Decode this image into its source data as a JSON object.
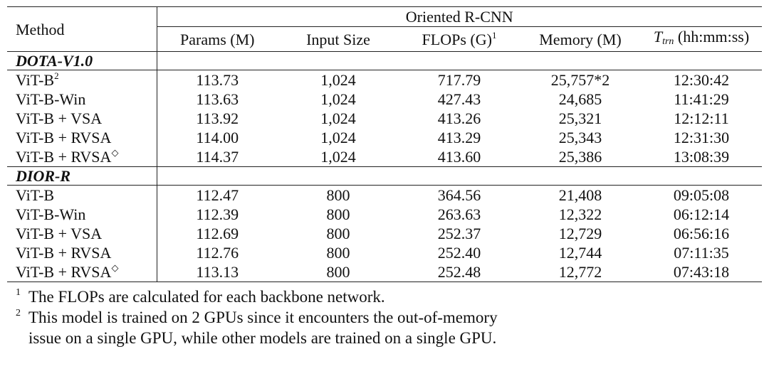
{
  "table": {
    "method_header": "Method",
    "group_header": "Oriented R-CNN",
    "columns": [
      "Params (M)",
      "Input Size",
      "FLOPs (G)",
      "Memory (M)"
    ],
    "flops_sup": "1",
    "ttrn_symbol": "T",
    "ttrn_sub": "trn",
    "ttrn_unit": "(hh:mm:ss)",
    "sections": [
      {
        "name": "DOTA-V1.0",
        "rows": [
          {
            "method": "ViT-B",
            "sup": "2",
            "params": "113.73",
            "input": "1,024",
            "flops": "717.79",
            "memory": "25,757*2",
            "time": "12:30:42"
          },
          {
            "method": "ViT-B-Win",
            "sup": "",
            "params": "113.63",
            "input": "1,024",
            "flops": "427.43",
            "memory": "24,685",
            "time": "11:41:29"
          },
          {
            "method": "ViT-B + VSA",
            "sup": "",
            "params": "113.92",
            "input": "1,024",
            "flops": "413.26",
            "memory": "25,321",
            "time": "12:12:11"
          },
          {
            "method": "ViT-B + RVSA",
            "sup": "",
            "params": "114.00",
            "input": "1,024",
            "flops": "413.29",
            "memory": "25,343",
            "time": "12:31:30"
          },
          {
            "method": "ViT-B + RVSA",
            "sup": "◇",
            "params": "114.37",
            "input": "1,024",
            "flops": "413.60",
            "memory": "25,386",
            "time": "13:08:39"
          }
        ]
      },
      {
        "name": "DIOR-R",
        "rows": [
          {
            "method": "ViT-B",
            "sup": "",
            "params": "112.47",
            "input": "800",
            "flops": "364.56",
            "memory": "21,408",
            "time": "09:05:08"
          },
          {
            "method": "ViT-B-Win",
            "sup": "",
            "params": "112.39",
            "input": "800",
            "flops": "263.63",
            "memory": "12,322",
            "time": "06:12:14"
          },
          {
            "method": "ViT-B + VSA",
            "sup": "",
            "params": "112.69",
            "input": "800",
            "flops": "252.37",
            "memory": "12,729",
            "time": "06:56:16"
          },
          {
            "method": "ViT-B + RVSA",
            "sup": "",
            "params": "112.76",
            "input": "800",
            "flops": "252.40",
            "memory": "12,744",
            "time": "07:11:35"
          },
          {
            "method": "ViT-B + RVSA",
            "sup": "◇",
            "params": "113.13",
            "input": "800",
            "flops": "252.48",
            "memory": "12,772",
            "time": "07:43:18"
          }
        ]
      }
    ]
  },
  "notes": [
    {
      "mark": "1",
      "lines": [
        "The FLOPs are calculated for each backbone network."
      ]
    },
    {
      "mark": "2",
      "lines": [
        "This model is trained on 2 GPUs since it encounters the out-of-memory",
        "issue on a single GPU, while other models are trained on a single GPU."
      ]
    }
  ]
}
